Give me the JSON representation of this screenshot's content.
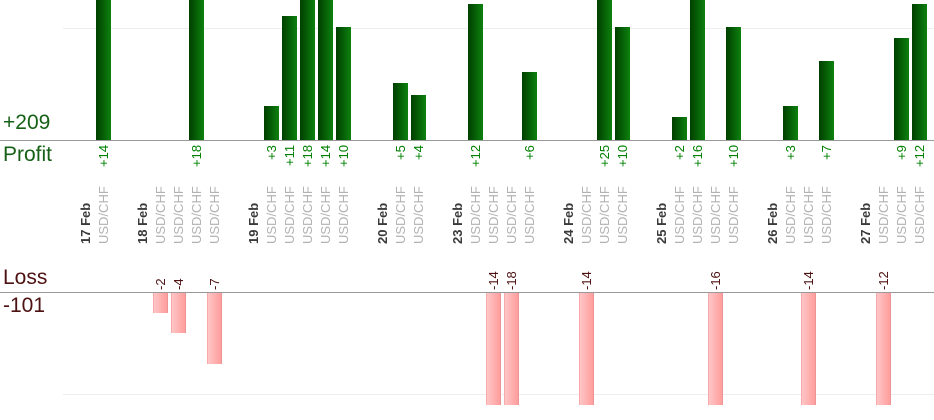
{
  "chart_data": {
    "type": "bar",
    "profit": {
      "label": "Profit",
      "total": "+209"
    },
    "loss": {
      "label": "Loss",
      "total": "-101"
    },
    "gridline_values": {
      "profit": 10,
      "loss": -10
    },
    "ylim_profit": [
      0,
      12.4
    ],
    "ylim_loss": [
      0,
      -11.2
    ],
    "categories": [
      "17 Feb",
      "18 Feb",
      "19 Feb",
      "20 Feb",
      "23 Feb",
      "24 Feb",
      "25 Feb",
      "26 Feb",
      "27 Feb"
    ],
    "days": [
      {
        "date": "17 Feb",
        "trades": [
          {
            "symbol": "USD/CHF",
            "value": 14,
            "label": "+14"
          }
        ]
      },
      {
        "date": "18 Feb",
        "trades": [
          {
            "symbol": "USD/CHF",
            "value": -2,
            "label": "-2"
          },
          {
            "symbol": "USD/CHF",
            "value": -4,
            "label": "-4"
          },
          {
            "symbol": "USD/CHF",
            "value": 18,
            "label": "+18"
          },
          {
            "symbol": "USD/CHF",
            "value": -7,
            "label": "-7"
          }
        ]
      },
      {
        "date": "19 Feb",
        "trades": [
          {
            "symbol": "USD/CHF",
            "value": 3,
            "label": "+3"
          },
          {
            "symbol": "USD/CHF",
            "value": 11,
            "label": "+11"
          },
          {
            "symbol": "USD/CHF",
            "value": 18,
            "label": "+18"
          },
          {
            "symbol": "USD/CHF",
            "value": 14,
            "label": "+14"
          },
          {
            "symbol": "USD/CHF",
            "value": 10,
            "label": "+10"
          }
        ]
      },
      {
        "date": "20 Feb",
        "trades": [
          {
            "symbol": "USD/CHF",
            "value": 5,
            "label": "+5"
          },
          {
            "symbol": "USD/CHF",
            "value": 4,
            "label": "+4"
          }
        ]
      },
      {
        "date": "23 Feb",
        "trades": [
          {
            "symbol": "USD/CHF",
            "value": 12,
            "label": "+12"
          },
          {
            "symbol": "USD/CHF",
            "value": -14,
            "label": "-14"
          },
          {
            "symbol": "USD/CHF",
            "value": -18,
            "label": "-18"
          },
          {
            "symbol": "USD/CHF",
            "value": 6,
            "label": "+6"
          }
        ]
      },
      {
        "date": "24 Feb",
        "trades": [
          {
            "symbol": "USD/CHF",
            "value": -14,
            "label": "-14"
          },
          {
            "symbol": "USD/CHF",
            "value": 25,
            "label": "+25"
          },
          {
            "symbol": "USD/CHF",
            "value": 10,
            "label": "+10"
          }
        ]
      },
      {
        "date": "25 Feb",
        "trades": [
          {
            "symbol": "USD/CHF",
            "value": 2,
            "label": "+2"
          },
          {
            "symbol": "USD/CHF",
            "value": 16,
            "label": "+16"
          },
          {
            "symbol": "USD/CHF",
            "value": -16,
            "label": "-16"
          },
          {
            "symbol": "USD/CHF",
            "value": 10,
            "label": "+10"
          }
        ]
      },
      {
        "date": "26 Feb",
        "trades": [
          {
            "symbol": "USD/CHF",
            "value": 3,
            "label": "+3"
          },
          {
            "symbol": "USD/CHF",
            "value": -14,
            "label": "-14"
          },
          {
            "symbol": "USD/CHF",
            "value": 7,
            "label": "+7"
          }
        ]
      },
      {
        "date": "27 Feb",
        "trades": [
          {
            "symbol": "USD/CHF",
            "value": -12,
            "label": "-12"
          },
          {
            "symbol": "USD/CHF",
            "value": 9,
            "label": "+9"
          },
          {
            "symbol": "USD/CHF",
            "value": 12,
            "label": "+12"
          }
        ]
      }
    ]
  },
  "colors": {
    "profit_header_text": "#176117",
    "loss_header_text": "#4e1212",
    "profit_value_text": "#008000",
    "loss_value_text": "#4e1212",
    "date_text": "#3a3a3a",
    "symbol_text": "#b2b2b2",
    "axis_line": "#999999",
    "grid_line": "#eeeeee",
    "profit_bar_from": "#003f00",
    "profit_bar_to": "#0d810d",
    "loss_bar_from": "#ffc6c6",
    "loss_bar_to": "#ff9d9d"
  }
}
